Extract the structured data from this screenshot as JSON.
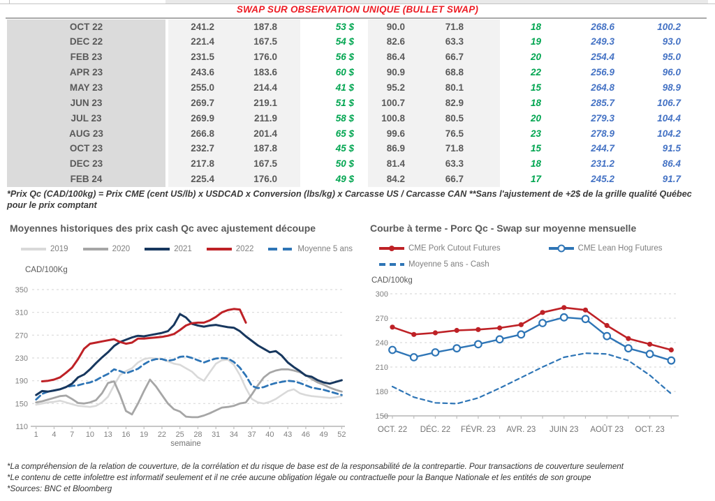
{
  "table": {
    "title": "SWAP SUR OBSERVATION UNIQUE (BULLET SWAP)",
    "rows": [
      {
        "month": "OCT 22",
        "cells": [
          "241.2",
          "187.8",
          "53 $",
          "90.0",
          "71.8",
          "18",
          "268.6",
          "100.2"
        ]
      },
      {
        "month": "DEC 22",
        "cells": [
          "221.4",
          "167.5",
          "54 $",
          "82.6",
          "63.3",
          "19",
          "249.3",
          "93.0"
        ]
      },
      {
        "month": "FEB 23",
        "cells": [
          "231.5",
          "176.0",
          "56 $",
          "86.4",
          "66.7",
          "20",
          "254.4",
          "95.0"
        ]
      },
      {
        "month": "APR 23",
        "cells": [
          "243.6",
          "183.6",
          "60 $",
          "90.9",
          "68.8",
          "22",
          "256.9",
          "96.0"
        ]
      },
      {
        "month": "MAY 23",
        "cells": [
          "255.0",
          "214.4",
          "41 $",
          "95.2",
          "80.1",
          "15",
          "264.8",
          "98.9"
        ]
      },
      {
        "month": "JUN 23",
        "cells": [
          "269.7",
          "219.1",
          "51 $",
          "100.7",
          "82.9",
          "18",
          "285.7",
          "106.7"
        ]
      },
      {
        "month": "JUL 23",
        "cells": [
          "269.9",
          "211.9",
          "58 $",
          "100.8",
          "80.5",
          "20",
          "279.3",
          "104.4"
        ]
      },
      {
        "month": "AUG 23",
        "cells": [
          "266.8",
          "201.4",
          "65 $",
          "99.6",
          "76.5",
          "23",
          "278.9",
          "104.2"
        ]
      },
      {
        "month": "OCT 23",
        "cells": [
          "232.7",
          "187.8",
          "45 $",
          "86.9",
          "71.8",
          "15",
          "244.7",
          "91.5"
        ]
      },
      {
        "month": "DEC 23",
        "cells": [
          "217.8",
          "167.5",
          "50 $",
          "81.4",
          "63.3",
          "18",
          "231.2",
          "86.4"
        ]
      },
      {
        "month": "FEB 24",
        "cells": [
          "225.4",
          "176.0",
          "49 $",
          "84.2",
          "66.7",
          "17",
          "245.2",
          "91.7"
        ]
      }
    ],
    "footnote": "*Prix Qc (CAD/100kg) = Prix CME (cent US/lb) x USDCAD x Conversion (lbs/kg) x Carcasse US / Carcasse CAN **Sans l'ajustement de +2$ de la grille qualité Québec pour le prix comptant"
  },
  "colors": {
    "title_red": "#ED1C24",
    "table_text": "#595959",
    "table_green": "#00A550",
    "table_blue": "#4472C4",
    "band_gray": "#DBDBDB",
    "band_light": "#F2F2F2",
    "navy": "#17375E",
    "dark_red": "#BE2126",
    "blue": "#2E75B6",
    "light_gray": "#D9D9D9",
    "mid_gray": "#A6A6A6",
    "grid": "#D9D9D9",
    "axis": "#BFBFBF"
  },
  "chart_data": [
    {
      "type": "line",
      "title": "Moyennes historiques des prix cash Qc avec ajustement découpe",
      "ylabel": "CAD/100Kg",
      "xlabel": "semaine",
      "ylim": [
        110,
        350
      ],
      "yticks": [
        110,
        150,
        190,
        230,
        270,
        310,
        350
      ],
      "xticks": [
        1,
        4,
        7,
        10,
        13,
        16,
        19,
        22,
        25,
        28,
        31,
        34,
        37,
        40,
        43,
        46,
        49,
        52
      ],
      "grid": true,
      "legend_position": "top",
      "draw_order": [
        0,
        1,
        4,
        2,
        3
      ],
      "series": [
        {
          "name": "2019",
          "color": "#D9D9D9",
          "width": 2.6,
          "values": [
            148,
            150,
            152,
            153,
            155,
            152,
            149,
            146,
            145,
            144,
            146,
            152,
            162,
            182,
            200,
            207,
            212,
            222,
            228,
            230,
            229,
            228,
            224,
            220,
            218,
            212,
            206,
            196,
            190,
            205,
            220,
            226,
            227,
            218,
            200,
            177,
            158,
            152,
            150,
            153,
            158,
            165,
            172,
            175,
            168,
            165,
            163,
            162,
            161,
            160,
            161,
            163
          ]
        },
        {
          "name": "2020",
          "color": "#A6A6A6",
          "width": 2.8,
          "values": [
            152,
            154,
            157,
            160,
            163,
            164,
            158,
            151,
            150,
            152,
            156,
            168,
            186,
            189,
            165,
            137,
            131,
            150,
            172,
            192,
            180,
            165,
            150,
            140,
            136,
            127,
            126,
            126,
            129,
            133,
            138,
            143,
            144,
            146,
            150,
            152,
            166,
            182,
            196,
            204,
            208,
            210,
            210,
            208,
            205,
            200,
            193,
            187,
            183,
            178,
            174,
            171
          ]
        },
        {
          "name": "2021",
          "color": "#17375E",
          "width": 3,
          "values": [
            165,
            172,
            171,
            173,
            175,
            179,
            185,
            196,
            201,
            210,
            221,
            231,
            240,
            251,
            258,
            262,
            266,
            269,
            268,
            270,
            272,
            274,
            277,
            288,
            307,
            301,
            290,
            287,
            285,
            287,
            288,
            286,
            284,
            283,
            277,
            268,
            260,
            252,
            246,
            240,
            242,
            234,
            222,
            214,
            207,
            199,
            197,
            191,
            187,
            185,
            188,
            191
          ]
        },
        {
          "name": "2022",
          "color": "#BE2126",
          "width": 3,
          "values": [
            null,
            189,
            190,
            192,
            196,
            204,
            213,
            228,
            246,
            255,
            257,
            259,
            261,
            263,
            258,
            255,
            257,
            264,
            264,
            265,
            266,
            267,
            269,
            272,
            279,
            287,
            291,
            292,
            292,
            296,
            302,
            310,
            314,
            316,
            315,
            292,
            null,
            null,
            null,
            null,
            null,
            null,
            null,
            null,
            null,
            null,
            null,
            null,
            null,
            null,
            null,
            null
          ]
        },
        {
          "name": "Moyenne 5 ans",
          "color": "#2E75B6",
          "width": 2.8,
          "dash": "8 5",
          "values": [
            157,
            167,
            171,
            173,
            175,
            179,
            181,
            182,
            185,
            187,
            191,
            197,
            202,
            210,
            207,
            203,
            207,
            211,
            219,
            225,
            228,
            228,
            225,
            227,
            232,
            233,
            230,
            226,
            222,
            226,
            229,
            230,
            229,
            223,
            213,
            199,
            181,
            177,
            179,
            183,
            186,
            188,
            190,
            189,
            186,
            182,
            178,
            176,
            174,
            171,
            168,
            165
          ]
        }
      ]
    },
    {
      "type": "line",
      "title": "Courbe à terme - Porc Qc - Swap sur moyenne mensuelle",
      "ylabel": "CAD/100kg",
      "ylim": [
        150,
        300
      ],
      "yticks": [
        150,
        180,
        210,
        240,
        270,
        300
      ],
      "x_tick_labels": [
        "OCT. 22",
        "DÉC. 22",
        "FÉVR. 23",
        "AVR. 23",
        "JUIN 23",
        "AOÛT 23",
        "OCT. 23"
      ],
      "x_tick_indices": [
        0,
        2,
        4,
        6,
        8,
        10,
        12
      ],
      "n_points": 14,
      "grid": true,
      "legend_position": "top",
      "draw_order": [
        2,
        0,
        1
      ],
      "series": [
        {
          "name": "CME Pork Cutout Futures",
          "color": "#BE2126",
          "width": 2.6,
          "marker": "filled",
          "values": [
            259,
            250,
            252,
            255,
            256,
            258,
            262,
            277,
            283,
            280,
            261,
            245,
            238,
            231
          ]
        },
        {
          "name": "CME Lean Hog Futures",
          "color": "#2E75B6",
          "width": 2.4,
          "marker": "open",
          "values": [
            231,
            222,
            228,
            233,
            238,
            244,
            250,
            264,
            271,
            269,
            248,
            233,
            226,
            218
          ]
        },
        {
          "name": "Moyenne 5 ans - Cash",
          "color": "#2E75B6",
          "width": 2.2,
          "dash": "6 5",
          "values": [
            186,
            173,
            166,
            165,
            172,
            184,
            197,
            210,
            222,
            227,
            226,
            218,
            200,
            177
          ]
        }
      ]
    }
  ],
  "footer": {
    "lines": [
      "*La compréhension de la relation de couverture, de la corrélation et du risque de base est de la responsabilité de la contrepartie. Pour transactions de couverture seulement",
      "*Le contenu de cette infolettre est informatif seulement et il ne crée aucune obligation légale ou contractuelle pour la Banque Nationale et les entités de son groupe",
      "*Sources: BNC et Bloomberg"
    ]
  }
}
